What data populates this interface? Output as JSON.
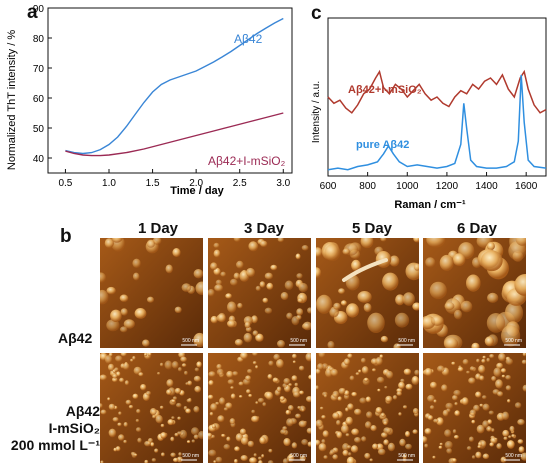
{
  "panel_labels": {
    "a": "a",
    "b": "b",
    "c": "c"
  },
  "chart_data": [
    {
      "type": "line",
      "panel": "a",
      "xlabel": "Time / day",
      "ylabel": "Normalized ThT intensity / %",
      "xlim": [
        0.3,
        3.1
      ],
      "ylim": [
        35,
        90
      ],
      "xticks": [
        "0.5",
        "1.0",
        "1.5",
        "2.0",
        "2.5",
        "3.0"
      ],
      "xtick_values": [
        0.5,
        1.0,
        1.5,
        2.0,
        2.5,
        3.0
      ],
      "yticks": [
        "40",
        "50",
        "60",
        "70",
        "80",
        "90"
      ],
      "ytick_values": [
        40,
        50,
        60,
        70,
        80,
        90
      ],
      "series": [
        {
          "name": "Aβ42",
          "color": "#3a86d6",
          "x": [
            0.5,
            0.6,
            0.7,
            0.8,
            0.9,
            1.0,
            1.1,
            1.2,
            1.3,
            1.4,
            1.5,
            1.6,
            1.7,
            1.8,
            1.9,
            2.0,
            2.1,
            2.2,
            2.3,
            2.4,
            2.5,
            2.6,
            2.7,
            2.8,
            2.9,
            3.0
          ],
          "y": [
            42.5,
            41.8,
            41.5,
            41.8,
            42.8,
            44.5,
            47.0,
            50.5,
            54.5,
            58.5,
            62.0,
            64.5,
            66.0,
            67.0,
            68.0,
            69.0,
            70.5,
            72.0,
            73.7,
            75.5,
            77.5,
            79.5,
            81.5,
            83.3,
            85.0,
            86.5
          ]
        },
        {
          "name": "Aβ42+I-mSiO₂",
          "color": "#9b2a54",
          "x": [
            0.5,
            0.6,
            0.7,
            0.8,
            0.9,
            1.0,
            1.2,
            1.4,
            1.6,
            1.8,
            2.0,
            2.2,
            2.4,
            2.6,
            2.8,
            3.0
          ],
          "y": [
            42.3,
            41.5,
            41.0,
            40.8,
            40.8,
            41.0,
            41.8,
            43.0,
            44.5,
            46.0,
            47.5,
            49.0,
            50.5,
            52.0,
            53.5,
            55.0
          ]
        }
      ]
    },
    {
      "type": "line",
      "panel": "c",
      "xlabel": "Raman / cm⁻¹",
      "ylabel": "Intensity / a.u.",
      "xlim": [
        600,
        1700
      ],
      "ylim": [
        0,
        1
      ],
      "xticks": [
        "600",
        "800",
        "1000",
        "1200",
        "1400",
        "1600"
      ],
      "xtick_values": [
        600,
        800,
        1000,
        1200,
        1400,
        1600
      ],
      "grid": false,
      "series": [
        {
          "name": "Aβ42+I-mSiO₂",
          "color": "#b03a2e",
          "x": [
            600,
            630,
            660,
            690,
            720,
            750,
            780,
            810,
            840,
            860,
            880,
            910,
            940,
            970,
            1000,
            1030,
            1060,
            1090,
            1120,
            1150,
            1180,
            1210,
            1240,
            1270,
            1300,
            1330,
            1360,
            1390,
            1420,
            1450,
            1480,
            1510,
            1540,
            1570,
            1590,
            1610,
            1640,
            1670,
            1700
          ],
          "y": [
            0.5,
            0.46,
            0.48,
            0.43,
            0.4,
            0.45,
            0.52,
            0.55,
            0.62,
            0.66,
            0.56,
            0.52,
            0.58,
            0.55,
            0.5,
            0.54,
            0.58,
            0.52,
            0.48,
            0.5,
            0.46,
            0.44,
            0.5,
            0.54,
            0.52,
            0.58,
            0.55,
            0.6,
            0.62,
            0.58,
            0.64,
            0.55,
            0.5,
            0.62,
            0.66,
            0.55,
            0.45,
            0.4,
            0.42
          ]
        },
        {
          "name": "pure Aβ42",
          "color": "#2f8fe0",
          "x": [
            600,
            650,
            700,
            750,
            800,
            850,
            880,
            905,
            930,
            960,
            1000,
            1050,
            1100,
            1150,
            1200,
            1240,
            1270,
            1285,
            1300,
            1320,
            1350,
            1400,
            1450,
            1500,
            1540,
            1560,
            1575,
            1590,
            1610,
            1640,
            1700
          ],
          "y": [
            0.04,
            0.05,
            0.04,
            0.06,
            0.07,
            0.09,
            0.14,
            0.19,
            0.14,
            0.09,
            0.06,
            0.07,
            0.06,
            0.05,
            0.06,
            0.08,
            0.2,
            0.46,
            0.3,
            0.1,
            0.06,
            0.05,
            0.05,
            0.06,
            0.09,
            0.22,
            0.64,
            0.34,
            0.1,
            0.06,
            0.05
          ]
        }
      ]
    }
  ],
  "afm": {
    "columns": [
      "1 Day",
      "3 Day",
      "5 Day",
      "6 Day"
    ],
    "rows": [
      {
        "label_lines": [
          "Aβ42"
        ]
      },
      {
        "label_lines": [
          "Aβ42",
          "I-mSiO₂",
          "200 mmol L⁻¹"
        ]
      }
    ],
    "scale_bar": "500 nm",
    "colors": {
      "dark": "#5a2a08",
      "mid": "#a65a18",
      "light": "#e8b060"
    }
  }
}
